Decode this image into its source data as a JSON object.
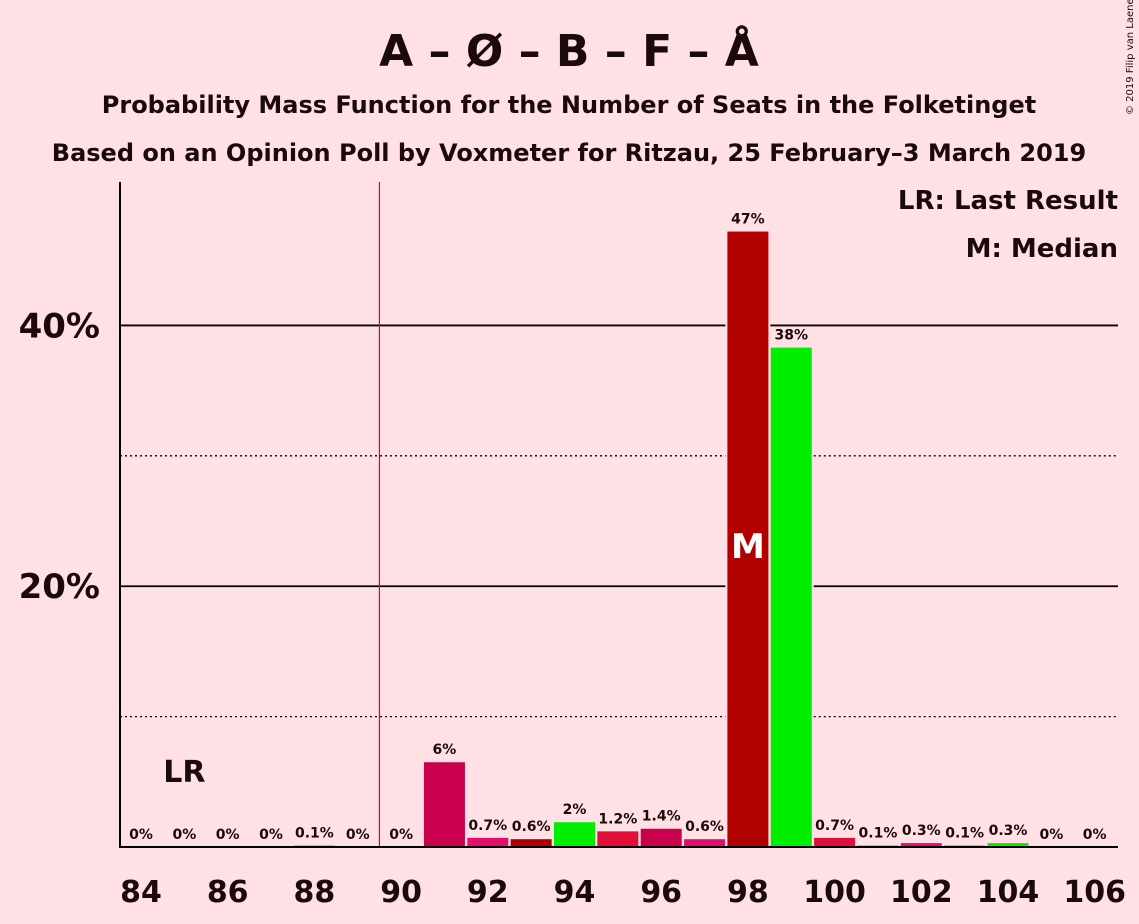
{
  "chart_data": {
    "type": "bar",
    "title": "A – Ø – B – F – Å",
    "subtitle": "Probability Mass Function for the Number of Seats in the Folketinget",
    "subtitle2": "Based on an Opinion Poll by Voxmeter for Ritzau, 25 February–3 March 2019",
    "copyright": "© 2019 Filip van Laenen",
    "x": [
      84,
      85,
      86,
      87,
      88,
      89,
      90,
      91,
      92,
      93,
      94,
      95,
      96,
      97,
      98,
      99,
      100,
      101,
      102,
      103,
      104,
      105,
      106
    ],
    "values": [
      0,
      0,
      0,
      0,
      0.1,
      0,
      0,
      6.5,
      0.7,
      0.6,
      1.9,
      1.2,
      1.4,
      0.6,
      47.2,
      38.3,
      0.7,
      0.1,
      0.3,
      0.1,
      0.3,
      0,
      0
    ],
    "data_labels": [
      "0%",
      "0%",
      "0%",
      "0%",
      "0.1%",
      "0%",
      "0%",
      "6%",
      "0.7%",
      "0.6%",
      "2%",
      "1.2%",
      "1.4%",
      "0.6%",
      "47%",
      "38%",
      "0.7%",
      "0.1%",
      "0.3%",
      "0.1%",
      "0.3%",
      "0%",
      "0%"
    ],
    "bar_colors": [
      "#C8102E",
      "#C8102E",
      "#C8102E",
      "#C8102E",
      "#C8102E",
      "#C8102E",
      "#C8102E",
      "#C8004E",
      "#E1106E",
      "#B00000",
      "#00EE00",
      "#E0103A",
      "#C8004E",
      "#E1106E",
      "#B00000",
      "#00EE00",
      "#E0103A",
      "#C8004E",
      "#E1106E",
      "#B00000",
      "#00EE00",
      "#E0103A",
      "#C8004E"
    ],
    "xticks": [
      "84",
      "86",
      "88",
      "90",
      "92",
      "94",
      "96",
      "98",
      "100",
      "102",
      "104",
      "106"
    ],
    "yticks": [
      {
        "value": 20,
        "label": "20%"
      },
      {
        "value": 40,
        "label": "40%"
      }
    ],
    "minor_gridlines": [
      10,
      30
    ],
    "ylim": [
      0,
      51
    ],
    "majority_line_x": 89.5,
    "last_result": {
      "x": 85,
      "label": "LR"
    },
    "median": {
      "x": 98,
      "label": "M"
    },
    "legend": [
      "LR: Last Result",
      "M: Median"
    ],
    "legend_position": "top-right",
    "colors": {
      "background": "#FFE0E4",
      "majority_line": "#C8102E",
      "axis": "#000000"
    }
  }
}
